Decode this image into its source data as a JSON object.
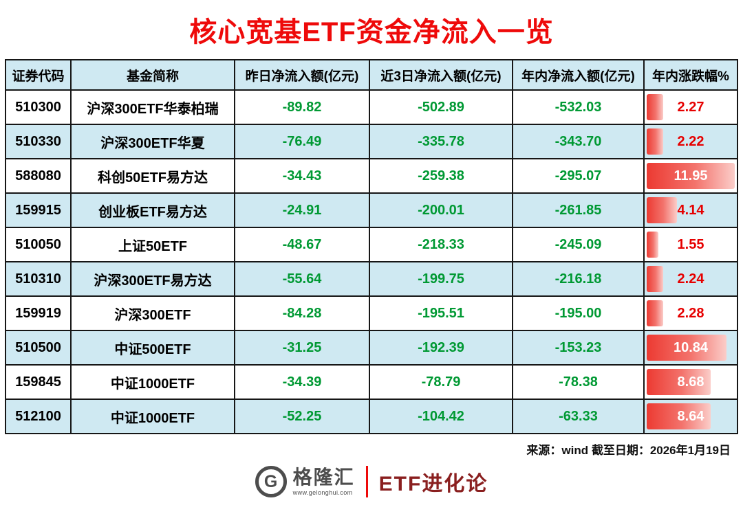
{
  "title": "核心宽基ETF资金净流入一览",
  "chart_data": {
    "type": "table",
    "title": "核心宽基ETF资金净流入一览",
    "columns": [
      "证券代码",
      "基金简称",
      "昨日净流入额(亿元)",
      "近3日净流入额(亿元)",
      "年内净流入额(亿元)",
      "年内涨跌幅%"
    ],
    "rows": [
      [
        "510300",
        "沪深300ETF华泰柏瑞",
        "-89.82",
        "-502.89",
        "-532.03",
        "2.27"
      ],
      [
        "510330",
        "沪深300ETF华夏",
        "-76.49",
        "-335.78",
        "-343.70",
        "2.22"
      ],
      [
        "588080",
        "科创50ETF易方达",
        "-34.43",
        "-259.38",
        "-295.07",
        "11.95"
      ],
      [
        "159915",
        "创业板ETF易方达",
        "-24.91",
        "-200.01",
        "-261.85",
        "4.14"
      ],
      [
        "510050",
        "上证50ETF",
        "-48.67",
        "-218.33",
        "-245.09",
        "1.55"
      ],
      [
        "510310",
        "沪深300ETF易方达",
        "-55.64",
        "-199.75",
        "-216.18",
        "2.24"
      ],
      [
        "159919",
        "沪深300ETF",
        "-84.28",
        "-195.51",
        "-195.00",
        "2.28"
      ],
      [
        "510500",
        "中证500ETF",
        "-31.25",
        "-192.39",
        "-153.23",
        "10.84"
      ],
      [
        "159845",
        "中证1000ETF",
        "-34.39",
        "-78.79",
        "-78.38",
        "8.68"
      ],
      [
        "512100",
        "中证1000ETF",
        "-52.25",
        "-104.42",
        "-63.33",
        "8.64"
      ]
    ],
    "bar_column_index": 5,
    "bar_max": 11.95,
    "legend_position": "none",
    "grid": true
  },
  "footer": {
    "source": "来源：wind  截至日期：2026年1月19日",
    "logo_name": "格隆汇",
    "logo_url": "www.gelonghui.com",
    "logo_letter": "G",
    "brand": "ETF进化论"
  },
  "colors": {
    "title_red": "#ee0a0a",
    "value_red": "#e60000",
    "flow_green": "#009933",
    "row_blue": "#cfe9f2",
    "border_dark": "#161616",
    "bar_start": "#ec3a32",
    "bar_mid": "#f3736c",
    "bar_end": "#fbcdc9",
    "brand_red": "#8a1f1f",
    "logo_gray": "#4d4d4d"
  }
}
